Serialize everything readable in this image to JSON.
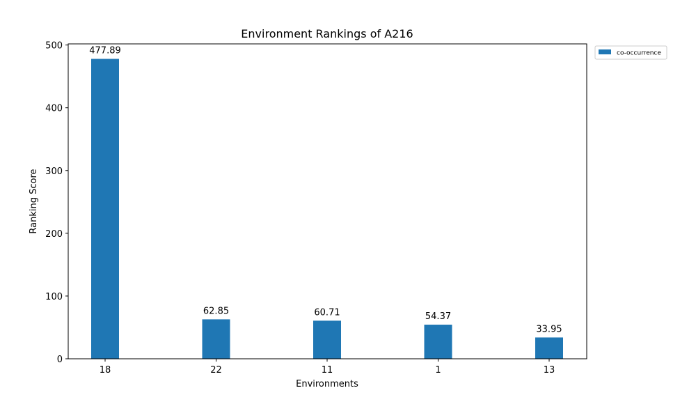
{
  "chart_data": {
    "type": "bar",
    "title": "Environment Rankings of A216",
    "xlabel": "Environments",
    "ylabel": "Ranking Score",
    "categories": [
      "18",
      "22",
      "11",
      "1",
      "13"
    ],
    "series": [
      {
        "name": "co-occurrence",
        "values": [
          477.89,
          62.85,
          60.71,
          54.37,
          33.95
        ]
      }
    ],
    "data_labels": [
      "477.89",
      "62.85",
      "60.71",
      "54.37",
      "33.95"
    ],
    "ylim": [
      0,
      501.78
    ],
    "yticks": [
      0,
      100,
      200,
      300,
      400,
      500
    ],
    "ytick_labels": [
      "0",
      "100",
      "200",
      "300",
      "400",
      "500"
    ],
    "grid": false,
    "legend_position": "outside-top-right"
  },
  "colors": {
    "bar": "#1f77b4",
    "axis": "#000000",
    "background": "#ffffff"
  }
}
